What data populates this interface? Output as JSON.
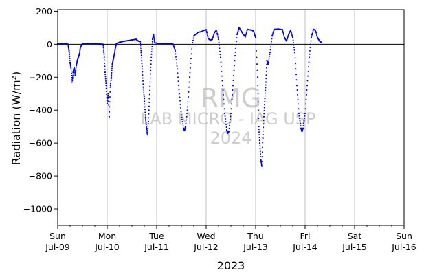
{
  "chart_data": {
    "type": "scatter",
    "ylabel": "Radiation (W/m²)",
    "xlabel": "2023",
    "ylim": [
      -1100,
      210
    ],
    "yticks": [
      200,
      0,
      -200,
      -400,
      -600,
      -800,
      -1000
    ],
    "ytick_labels": [
      "200",
      "0",
      "−200",
      "−400",
      "−600",
      "−800",
      "−1000"
    ],
    "xlim": [
      "2023-07-09",
      "2023-07-16"
    ],
    "xticks": [
      {
        "date": "2023-07-09",
        "day": "Sun",
        "label": "Jul-09"
      },
      {
        "date": "2023-07-10",
        "day": "Mon",
        "label": "Jul-10"
      },
      {
        "date": "2023-07-11",
        "day": "Tue",
        "label": "Jul-11"
      },
      {
        "date": "2023-07-12",
        "day": "Wed",
        "label": "Jul-12"
      },
      {
        "date": "2023-07-13",
        "day": "Thu",
        "label": "Jul-13"
      },
      {
        "date": "2023-07-14",
        "day": "Fri",
        "label": "Jul-14"
      },
      {
        "date": "2023-07-15",
        "day": "Sat",
        "label": "Jul-15"
      },
      {
        "date": "2023-07-16",
        "day": "Sun",
        "label": "Jul-16"
      }
    ],
    "grid": "vertical",
    "reference_line_y": 0,
    "series_color": "#0000ee",
    "watermark": [
      "RMG",
      "LAB MICRO - IAG USP",
      "2024"
    ],
    "series": [
      {
        "values": [
          {
            "x": "2023-07-09T00:00",
            "y": 2
          },
          {
            "x": "2023-07-09T02:00",
            "y": 2
          },
          {
            "x": "2023-07-09T04:00",
            "y": 3
          },
          {
            "x": "2023-07-09T05:00",
            "y": 0
          },
          {
            "x": "2023-07-09T05:30",
            "y": -40
          },
          {
            "x": "2023-07-09T06:00",
            "y": -110
          },
          {
            "x": "2023-07-09T06:30",
            "y": -150
          },
          {
            "x": "2023-07-09T07:00",
            "y": -230
          },
          {
            "x": "2023-07-09T07:30",
            "y": -170
          },
          {
            "x": "2023-07-09T08:00",
            "y": -140
          },
          {
            "x": "2023-07-09T08:30",
            "y": -190
          },
          {
            "x": "2023-07-09T09:00",
            "y": -130
          },
          {
            "x": "2023-07-09T09:30",
            "y": -100
          },
          {
            "x": "2023-07-09T10:00",
            "y": -80
          },
          {
            "x": "2023-07-09T10:30",
            "y": -60
          },
          {
            "x": "2023-07-09T11:00",
            "y": -20
          },
          {
            "x": "2023-07-09T12:00",
            "y": 3
          },
          {
            "x": "2023-07-09T15:00",
            "y": 4
          },
          {
            "x": "2023-07-09T18:00",
            "y": 3
          },
          {
            "x": "2023-07-09T20:00",
            "y": 2
          },
          {
            "x": "2023-07-09T22:00",
            "y": 0
          },
          {
            "x": "2023-07-09T22:30",
            "y": -60
          },
          {
            "x": "2023-07-09T23:00",
            "y": -170
          },
          {
            "x": "2023-07-09T23:30",
            "y": -250
          },
          {
            "x": "2023-07-10T00:00",
            "y": -360
          },
          {
            "x": "2023-07-10T00:30",
            "y": -300
          },
          {
            "x": "2023-07-10T01:00",
            "y": -440
          },
          {
            "x": "2023-07-10T01:30",
            "y": -260
          },
          {
            "x": "2023-07-10T02:00",
            "y": -200
          },
          {
            "x": "2023-07-10T02:30",
            "y": -120
          },
          {
            "x": "2023-07-10T03:00",
            "y": -90
          },
          {
            "x": "2023-07-10T03:30",
            "y": -60
          },
          {
            "x": "2023-07-10T04:00",
            "y": -20
          },
          {
            "x": "2023-07-10T04:30",
            "y": 5
          },
          {
            "x": "2023-07-10T06:00",
            "y": 12
          },
          {
            "x": "2023-07-10T08:00",
            "y": 18
          },
          {
            "x": "2023-07-10T10:00",
            "y": 22
          },
          {
            "x": "2023-07-10T12:00",
            "y": 26
          },
          {
            "x": "2023-07-10T14:00",
            "y": 30
          },
          {
            "x": "2023-07-10T15:00",
            "y": 20
          },
          {
            "x": "2023-07-10T16:00",
            "y": 15
          },
          {
            "x": "2023-07-10T16:30",
            "y": -50
          },
          {
            "x": "2023-07-10T17:00",
            "y": -150
          },
          {
            "x": "2023-07-10T17:30",
            "y": -260
          },
          {
            "x": "2023-07-10T18:00",
            "y": -330
          },
          {
            "x": "2023-07-10T18:30",
            "y": -430
          },
          {
            "x": "2023-07-10T19:00",
            "y": -500
          },
          {
            "x": "2023-07-10T19:30",
            "y": -550
          },
          {
            "x": "2023-07-10T20:00",
            "y": -470
          },
          {
            "x": "2023-07-10T20:30",
            "y": -330
          },
          {
            "x": "2023-07-10T21:00",
            "y": -180
          },
          {
            "x": "2023-07-10T21:30",
            "y": -60
          },
          {
            "x": "2023-07-10T22:00",
            "y": 30
          },
          {
            "x": "2023-07-10T22:30",
            "y": 60
          },
          {
            "x": "2023-07-10T23:00",
            "y": 10
          },
          {
            "x": "2023-07-11T01:00",
            "y": 3
          },
          {
            "x": "2023-07-11T03:00",
            "y": 4
          },
          {
            "x": "2023-07-11T05:00",
            "y": 5
          },
          {
            "x": "2023-07-11T07:00",
            "y": 3
          },
          {
            "x": "2023-07-11T08:00",
            "y": 0
          },
          {
            "x": "2023-07-11T09:00",
            "y": -40
          },
          {
            "x": "2023-07-11T10:00",
            "y": -150
          },
          {
            "x": "2023-07-11T11:00",
            "y": -300
          },
          {
            "x": "2023-07-11T12:00",
            "y": -430
          },
          {
            "x": "2023-07-11T13:00",
            "y": -510
          },
          {
            "x": "2023-07-11T13:30",
            "y": -525
          },
          {
            "x": "2023-07-11T14:00",
            "y": -500
          },
          {
            "x": "2023-07-11T15:00",
            "y": -380
          },
          {
            "x": "2023-07-11T16:00",
            "y": -200
          },
          {
            "x": "2023-07-11T17:00",
            "y": -30
          },
          {
            "x": "2023-07-11T18:00",
            "y": 50
          },
          {
            "x": "2023-07-11T20:00",
            "y": 72
          },
          {
            "x": "2023-07-11T22:00",
            "y": 78
          },
          {
            "x": "2023-07-11T23:00",
            "y": 85
          },
          {
            "x": "2023-07-12T00:00",
            "y": 88
          },
          {
            "x": "2023-07-12T01:00",
            "y": 35
          },
          {
            "x": "2023-07-12T02:00",
            "y": 25
          },
          {
            "x": "2023-07-12T03:00",
            "y": 30
          },
          {
            "x": "2023-07-12T04:00",
            "y": 70
          },
          {
            "x": "2023-07-12T05:00",
            "y": 85
          },
          {
            "x": "2023-07-12T06:00",
            "y": 30
          },
          {
            "x": "2023-07-12T07:00",
            "y": -80
          },
          {
            "x": "2023-07-12T08:00",
            "y": -250
          },
          {
            "x": "2023-07-12T09:00",
            "y": -420
          },
          {
            "x": "2023-07-12T10:00",
            "y": -520
          },
          {
            "x": "2023-07-12T10:30",
            "y": -540
          },
          {
            "x": "2023-07-12T11:00",
            "y": -530
          },
          {
            "x": "2023-07-12T12:00",
            "y": -420
          },
          {
            "x": "2023-07-12T13:00",
            "y": -250
          },
          {
            "x": "2023-07-12T14:00",
            "y": -70
          },
          {
            "x": "2023-07-12T15:00",
            "y": 60
          },
          {
            "x": "2023-07-12T16:00",
            "y": 100
          },
          {
            "x": "2023-07-12T17:00",
            "y": 80
          },
          {
            "x": "2023-07-12T18:00",
            "y": 60
          },
          {
            "x": "2023-07-12T19:00",
            "y": 45
          },
          {
            "x": "2023-07-12T20:00",
            "y": 90
          },
          {
            "x": "2023-07-12T22:00",
            "y": 85
          },
          {
            "x": "2023-07-12T23:00",
            "y": 80
          },
          {
            "x": "2023-07-13T00:00",
            "y": 40
          },
          {
            "x": "2023-07-13T01:00",
            "y": -200
          },
          {
            "x": "2023-07-13T01:30",
            "y": -500
          },
          {
            "x": "2023-07-13T02:00",
            "y": -600
          },
          {
            "x": "2023-07-13T02:30",
            "y": -700
          },
          {
            "x": "2023-07-13T03:00",
            "y": -740
          },
          {
            "x": "2023-07-13T03:30",
            "y": -570
          },
          {
            "x": "2023-07-13T04:00",
            "y": -440
          },
          {
            "x": "2023-07-13T04:30",
            "y": -330
          },
          {
            "x": "2023-07-13T05:00",
            "y": -230
          },
          {
            "x": "2023-07-13T05:30",
            "y": -100
          },
          {
            "x": "2023-07-13T06:00",
            "y": -120
          },
          {
            "x": "2023-07-13T07:00",
            "y": -50
          },
          {
            "x": "2023-07-13T08:00",
            "y": 50
          },
          {
            "x": "2023-07-13T09:00",
            "y": 90
          },
          {
            "x": "2023-07-13T11:00",
            "y": 92
          },
          {
            "x": "2023-07-13T13:00",
            "y": 88
          },
          {
            "x": "2023-07-13T14:00",
            "y": 40
          },
          {
            "x": "2023-07-13T15:00",
            "y": 20
          },
          {
            "x": "2023-07-13T16:00",
            "y": 60
          },
          {
            "x": "2023-07-13T17:00",
            "y": 85
          },
          {
            "x": "2023-07-13T18:00",
            "y": 40
          },
          {
            "x": "2023-07-13T19:00",
            "y": -50
          },
          {
            "x": "2023-07-13T20:00",
            "y": -250
          },
          {
            "x": "2023-07-13T21:00",
            "y": -420
          },
          {
            "x": "2023-07-13T22:00",
            "y": -510
          },
          {
            "x": "2023-07-13T22:30",
            "y": -530
          },
          {
            "x": "2023-07-13T23:00",
            "y": -510
          },
          {
            "x": "2023-07-14T00:00",
            "y": -420
          },
          {
            "x": "2023-07-14T01:00",
            "y": -250
          },
          {
            "x": "2023-07-14T02:00",
            "y": -80
          },
          {
            "x": "2023-07-14T03:00",
            "y": 40
          },
          {
            "x": "2023-07-14T04:00",
            "y": 90
          },
          {
            "x": "2023-07-14T05:00",
            "y": 85
          },
          {
            "x": "2023-07-14T06:00",
            "y": 40
          },
          {
            "x": "2023-07-14T07:00",
            "y": 20
          },
          {
            "x": "2023-07-14T08:00",
            "y": 10
          }
        ]
      }
    ]
  }
}
